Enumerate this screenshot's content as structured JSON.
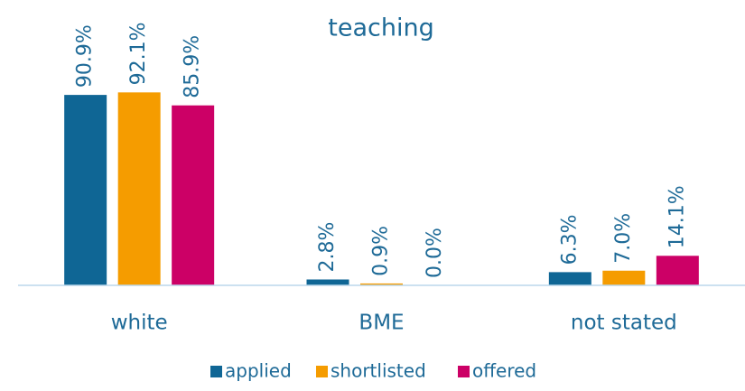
{
  "chart_data": {
    "type": "bar",
    "title": "teaching",
    "categories": [
      "white",
      "BME",
      "not stated"
    ],
    "series": [
      {
        "name": "applied",
        "color": "#0f6695",
        "values": [
          90.9,
          2.8,
          6.3
        ],
        "value_labels": [
          "90.9%",
          "2.8%",
          "6.3%"
        ]
      },
      {
        "name": "shortlisted",
        "color": "#f59c00",
        "values": [
          92.1,
          0.9,
          7.0
        ],
        "value_labels": [
          "92.1%",
          "0.9%",
          "7.0%"
        ]
      },
      {
        "name": "offered",
        "color": "#cc0066",
        "values": [
          85.9,
          0.0,
          14.1
        ],
        "value_labels": [
          "85.9%",
          "0.0%",
          "14.1%"
        ]
      }
    ],
    "ylim": [
      0,
      100
    ],
    "legend": "bottom"
  }
}
